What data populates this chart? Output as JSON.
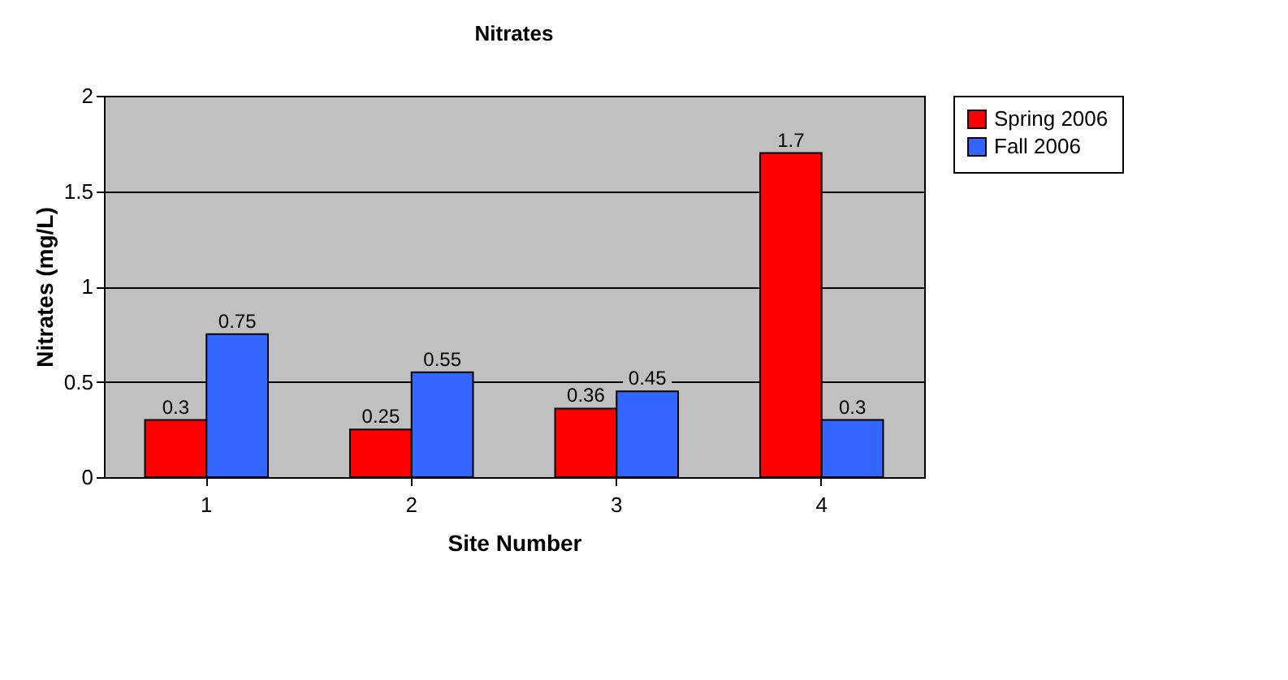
{
  "chart_data": {
    "type": "bar",
    "title": "Nitrates",
    "xlabel": "Site Number",
    "ylabel": "Nitrates (mg/L)",
    "categories": [
      "1",
      "2",
      "3",
      "4"
    ],
    "series": [
      {
        "name": "Spring 2006",
        "color": "#ff0000",
        "values": [
          0.3,
          0.25,
          0.36,
          1.7
        ]
      },
      {
        "name": "Fall 2006",
        "color": "#3366ff",
        "values": [
          0.75,
          0.55,
          0.45,
          0.3
        ]
      }
    ],
    "ylim": [
      0,
      2
    ],
    "yticks": [
      0,
      0.5,
      1,
      1.5,
      2
    ],
    "grid": "y",
    "legend": "right",
    "data_labels": true
  }
}
